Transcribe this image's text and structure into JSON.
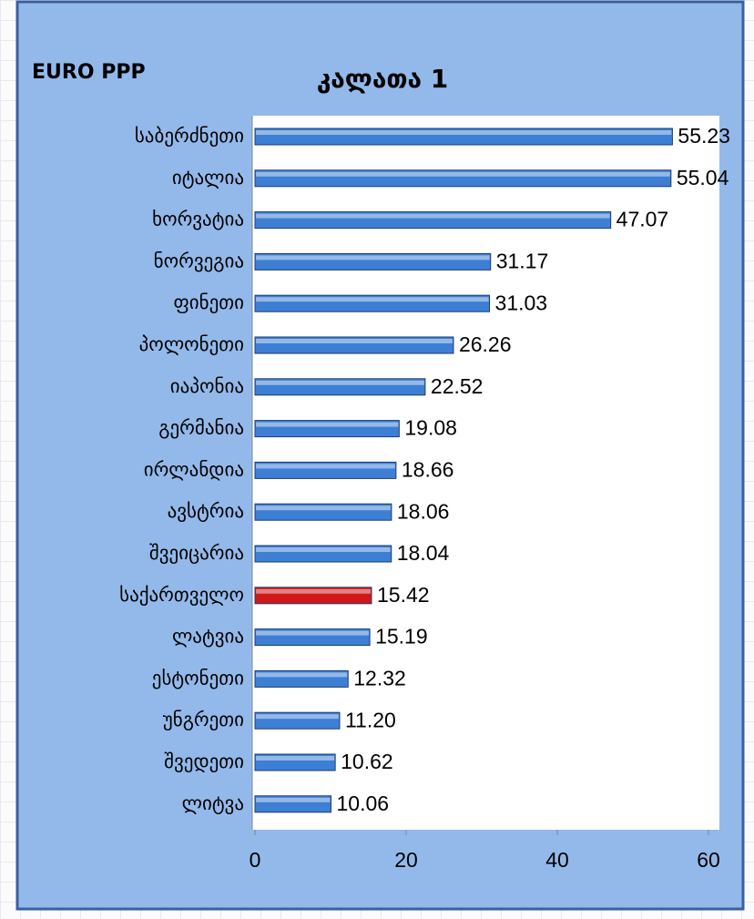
{
  "chart_data": {
    "type": "bar",
    "orientation": "horizontal",
    "title": "კალათა 1",
    "subtitle": "EURO PPP",
    "categories": [
      "საბერძნეთი",
      "იტალია",
      "ხორვატია",
      "ნორვეგია",
      "ფინეთი",
      "პოლონეთი",
      "იაპონია",
      "გერმანია",
      "ირლანდია",
      "ავსტრია",
      "შვეიცარია",
      "საქართველო",
      "ლატვია",
      "ესტონეთი",
      "უნგრეთი",
      "შვედეთი",
      "ლიტვა"
    ],
    "values": [
      55.23,
      55.04,
      47.07,
      31.17,
      31.03,
      26.26,
      22.52,
      19.08,
      18.66,
      18.06,
      18.04,
      15.42,
      15.19,
      12.32,
      11.2,
      10.62,
      10.06
    ],
    "value_labels": [
      "55.23",
      "55.04",
      "47.07",
      "31.17",
      "31.03",
      "26.26",
      "22.52",
      "19.08",
      "18.66",
      "18.06",
      "18.04",
      "15.42",
      "15.19",
      "12.32",
      "11.20",
      "10.62",
      "10.06"
    ],
    "colors": [
      "#3d7fd4",
      "#3d7fd4",
      "#3d7fd4",
      "#3d7fd4",
      "#3d7fd4",
      "#3d7fd4",
      "#3d7fd4",
      "#3d7fd4",
      "#3d7fd4",
      "#3d7fd4",
      "#3d7fd4",
      "#d01818",
      "#3d7fd4",
      "#3d7fd4",
      "#3d7fd4",
      "#3d7fd4",
      "#3d7fd4"
    ],
    "xlim": [
      0,
      60
    ],
    "xticks": [
      0,
      20,
      40,
      60
    ]
  }
}
